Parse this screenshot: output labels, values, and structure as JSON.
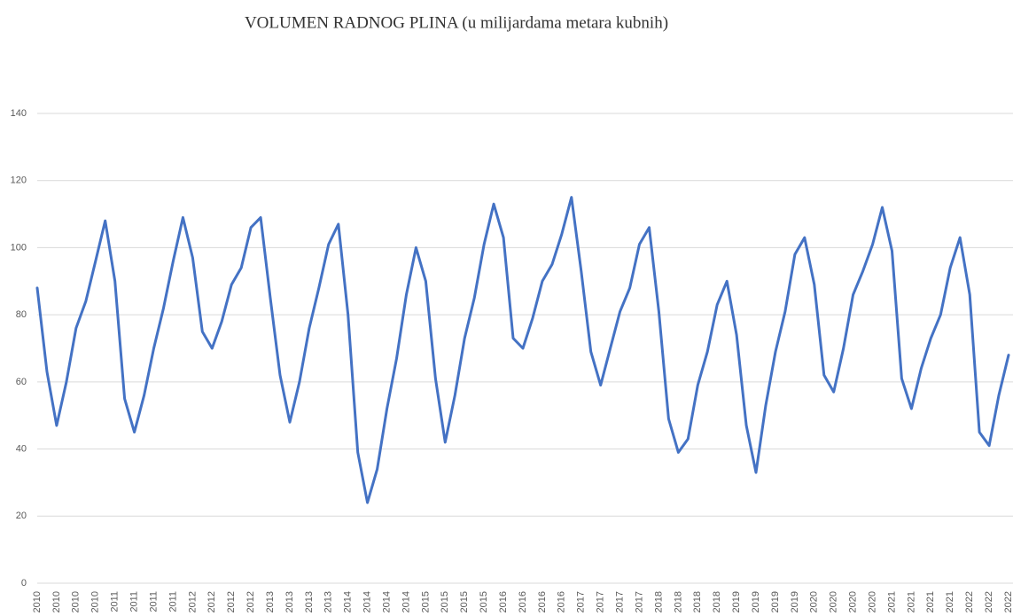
{
  "chart_data": {
    "type": "line",
    "title": "VOLUMEN RADNOG PLINA (u milijardama metara kubnih)",
    "categories": [
      "2010",
      null,
      "2010",
      null,
      "2010",
      null,
      "2010",
      null,
      "2011",
      null,
      "2011",
      null,
      "2011",
      null,
      "2011",
      null,
      "2012",
      null,
      "2012",
      null,
      "2012",
      null,
      "2012",
      null,
      "2013",
      null,
      "2013",
      null,
      "2013",
      null,
      "2013",
      null,
      "2014",
      null,
      "2014",
      null,
      "2014",
      null,
      "2014",
      null,
      "2015",
      null,
      "2015",
      null,
      "2015",
      null,
      "2015",
      null,
      "2016",
      null,
      "2016",
      null,
      "2016",
      null,
      "2016",
      null,
      "2017",
      null,
      "2017",
      null,
      "2017",
      null,
      "2017",
      null,
      "2018",
      null,
      "2018",
      null,
      "2018",
      null,
      "2018",
      null,
      "2019",
      null,
      "2019",
      null,
      "2019",
      null,
      "2019",
      null,
      "2020",
      null,
      "2020",
      null,
      "2020",
      null,
      "2020",
      null,
      "2021",
      null,
      "2021",
      null,
      "2021",
      null,
      "2021",
      null,
      "2022",
      null,
      "2022",
      null,
      "2022"
    ],
    "series": [
      {
        "color": "#4472c4",
        "values": [
          88,
          63,
          47,
          60,
          76,
          84,
          96,
          108,
          90,
          55,
          45,
          56,
          70,
          82,
          96,
          109,
          97,
          75,
          70,
          78,
          89,
          94,
          106,
          109,
          85,
          62,
          48,
          60,
          76,
          88,
          101,
          107,
          80,
          39,
          24,
          34,
          52,
          67,
          86,
          100,
          90,
          61,
          42,
          56,
          73,
          85,
          101,
          113,
          103,
          73,
          70,
          79,
          90,
          95,
          104,
          115,
          93,
          69,
          59,
          70,
          81,
          88,
          101,
          106,
          81,
          49,
          39,
          43,
          59,
          69,
          83,
          90,
          74,
          47,
          33,
          53,
          69,
          81,
          98,
          103,
          89,
          62,
          57,
          70,
          86,
          93,
          101,
          112,
          99,
          61,
          52,
          64,
          73,
          80,
          94,
          103,
          86,
          45,
          41,
          56,
          68
        ]
      }
    ],
    "ylim": [
      0,
      140
    ],
    "yticks": [
      0,
      20,
      40,
      60,
      80,
      100,
      120,
      140
    ],
    "grid": true
  }
}
